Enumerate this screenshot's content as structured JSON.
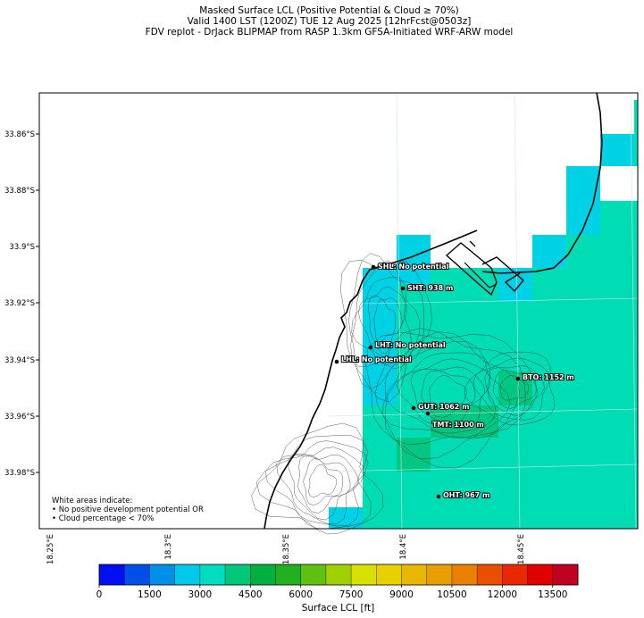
{
  "title": {
    "line1": "Masked Surface LCL (Positive Potential & Cloud ≥ 70%)",
    "line2": "Valid 1400 LST (1200Z) TUE 12 Aug 2025 [12hrFcst@0503z]",
    "line3": "FDV replot - DrJack BLIPMAP from RASP 1.3km GFSA-Initiated WRF-ARW model"
  },
  "lat_ticks": [
    "33.86°S",
    "33.88°S",
    "33.9°S",
    "33.92°S",
    "33.94°S",
    "33.96°S",
    "33.98°S"
  ],
  "lon_ticks": [
    "18.25°E",
    "18.3°E",
    "18.35°E",
    "18.4°E",
    "18.45°E"
  ],
  "stations": [
    {
      "code": "SHL",
      "label": "SHL: No potential"
    },
    {
      "code": "SHT",
      "label": "SHT: 938 m"
    },
    {
      "code": "LHT",
      "label": "LHT: No potential"
    },
    {
      "code": "LHL",
      "label": "LHL: No potential"
    },
    {
      "code": "BTO",
      "label": "BTO: 1152 m"
    },
    {
      "code": "GUT",
      "label": "GUT: 1062 m"
    },
    {
      "code": "TMT",
      "label": "TMT: 1100 m"
    },
    {
      "code": "OHT",
      "label": "OHT: 967 m"
    }
  ],
  "note": {
    "line1": "White areas indicate:",
    "line2": "• No positive development potential OR",
    "line3": "• Cloud percentage < 70%"
  },
  "colorbar": {
    "label": "Surface LCL [ft]",
    "tick_labels": [
      "0",
      "1500",
      "3000",
      "4500",
      "6000",
      "7500",
      "9000",
      "10500",
      "12000",
      "13500"
    ],
    "colors": [
      "#0010f0",
      "#0050e8",
      "#0090e8",
      "#00c8e8",
      "#00dcc0",
      "#00c878",
      "#00b040",
      "#20b020",
      "#60c010",
      "#a0d000",
      "#d8e000",
      "#e8d000",
      "#e8b800",
      "#e8a000",
      "#e88000",
      "#e85000",
      "#e82800",
      "#e00000",
      "#c00020"
    ]
  },
  "colors": {
    "cyan": "#00d2e6",
    "teal": "#00dcb4",
    "green": "#00c882",
    "coast": "#000000"
  }
}
